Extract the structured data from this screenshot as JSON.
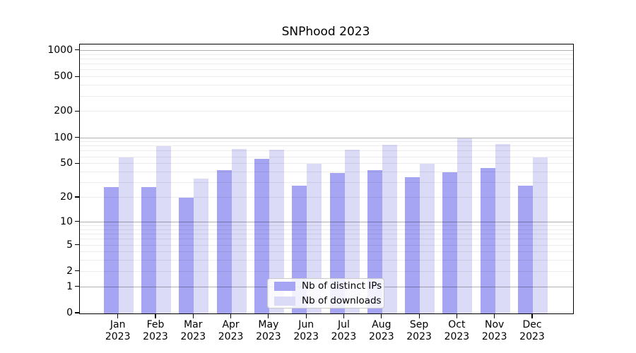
{
  "chart_data": {
    "type": "bar",
    "title": "SNPhood 2023",
    "categories": [
      "Jan",
      "Feb",
      "Mar",
      "Apr",
      "May",
      "Jun",
      "Jul",
      "Aug",
      "Sep",
      "Oct",
      "Nov",
      "Dec"
    ],
    "category_year": "2023",
    "series": [
      {
        "name": "Nb of distinct IPs",
        "color": "#a5a5f3",
        "values": [
          27,
          27,
          20,
          42,
          57,
          28,
          39,
          42,
          35,
          40,
          45,
          28
        ]
      },
      {
        "name": "Nb of downloads",
        "color": "#dbdbf8",
        "values": [
          60,
          80,
          34,
          75,
          73,
          50,
          74,
          83,
          50,
          100,
          85,
          60
        ]
      }
    ],
    "y_axis": {
      "ticks": [
        0,
        1,
        2,
        5,
        10,
        20,
        50,
        100,
        200,
        500,
        1000
      ],
      "scale": "log10(1+y)",
      "major_gridlines_at": [
        1,
        10,
        100,
        1000
      ],
      "minor_gridlines": "2-9 multiples of each decade"
    },
    "x_axis": {
      "label_format": "month over year, two lines"
    },
    "legend": {
      "position": "inside bottom center"
    },
    "grid": {
      "major_color": "#b0b0b0",
      "minor_color": "#ececec"
    },
    "axis_color": "#000000",
    "background_color": "#ffffff"
  }
}
